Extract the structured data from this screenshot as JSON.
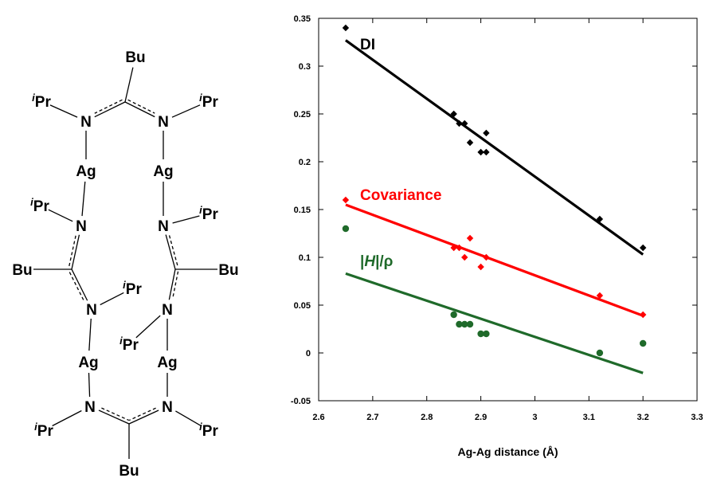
{
  "molecule": {
    "atoms": [
      {
        "id": "Bu_top",
        "label": "Bu"
      },
      {
        "id": "C_top",
        "label": ""
      },
      {
        "id": "N1",
        "label": "N"
      },
      {
        "id": "N2",
        "label": "N"
      },
      {
        "id": "iPr1",
        "sup": "i",
        "label": "Pr"
      },
      {
        "id": "iPr2",
        "sup": "i",
        "label": "Pr"
      },
      {
        "id": "Ag1",
        "label": "Ag"
      },
      {
        "id": "Ag2",
        "label": "Ag"
      },
      {
        "id": "N3",
        "label": "N"
      },
      {
        "id": "iPr3",
        "sup": "i",
        "label": "Pr"
      },
      {
        "id": "N4",
        "label": "N"
      },
      {
        "id": "iPr4",
        "sup": "i",
        "label": "Pr"
      },
      {
        "id": "C_left",
        "label": ""
      },
      {
        "id": "Bu_left",
        "label": "Bu"
      },
      {
        "id": "C_right",
        "label": ""
      },
      {
        "id": "Bu_right",
        "label": "Bu"
      },
      {
        "id": "N5",
        "label": "N"
      },
      {
        "id": "iPr5",
        "sup": "i",
        "label": "Pr"
      },
      {
        "id": "N6",
        "label": "N"
      },
      {
        "id": "iPr6",
        "sup": "i",
        "label": "Pr"
      },
      {
        "id": "Ag3",
        "label": "Ag"
      },
      {
        "id": "Ag4",
        "label": "Ag"
      },
      {
        "id": "N7",
        "label": "N"
      },
      {
        "id": "N8",
        "label": "N"
      },
      {
        "id": "iPr7",
        "sup": "i",
        "label": "Pr"
      },
      {
        "id": "iPr8",
        "sup": "i",
        "label": "Pr"
      },
      {
        "id": "C_bot",
        "label": ""
      },
      {
        "id": "Bu_bot",
        "label": "Bu"
      }
    ],
    "bonds": [
      {
        "a": "C_top",
        "b": "Bu_top",
        "type": "single"
      },
      {
        "a": "C_top",
        "b": "N1",
        "type": "delocalized",
        "side": 1
      },
      {
        "a": "C_top",
        "b": "N2",
        "type": "delocalized",
        "side": -1
      },
      {
        "a": "N1",
        "b": "iPr1",
        "type": "single"
      },
      {
        "a": "N2",
        "b": "iPr2",
        "type": "single"
      },
      {
        "a": "N1",
        "b": "Ag1",
        "type": "single"
      },
      {
        "a": "N2",
        "b": "Ag2",
        "type": "single"
      },
      {
        "a": "Ag1",
        "b": "N3",
        "type": "single"
      },
      {
        "a": "Ag2",
        "b": "N4",
        "type": "single"
      },
      {
        "a": "N3",
        "b": "iPr3",
        "type": "single"
      },
      {
        "a": "N4",
        "b": "iPr4",
        "type": "single"
      },
      {
        "a": "N3",
        "b": "C_left",
        "type": "delocalized",
        "side": 1
      },
      {
        "a": "C_left",
        "b": "Bu_left",
        "type": "single"
      },
      {
        "a": "C_left",
        "b": "N5",
        "type": "delocalized",
        "side": 1
      },
      {
        "a": "N4",
        "b": "C_right",
        "type": "delocalized",
        "side": -1
      },
      {
        "a": "C_right",
        "b": "Bu_right",
        "type": "single"
      },
      {
        "a": "C_right",
        "b": "N6",
        "type": "delocalized",
        "side": -1
      },
      {
        "a": "N5",
        "b": "iPr5",
        "type": "single"
      },
      {
        "a": "N6",
        "b": "iPr6",
        "type": "single"
      },
      {
        "a": "N5",
        "b": "Ag3",
        "type": "single"
      },
      {
        "a": "N6",
        "b": "Ag4",
        "type": "single"
      },
      {
        "a": "Ag3",
        "b": "N7",
        "type": "single"
      },
      {
        "a": "Ag4",
        "b": "N8",
        "type": "single"
      },
      {
        "a": "N7",
        "b": "iPr7",
        "type": "single"
      },
      {
        "a": "N8",
        "b": "iPr8",
        "type": "single"
      },
      {
        "a": "N7",
        "b": "C_bot",
        "type": "delocalized",
        "side": -1
      },
      {
        "a": "N8",
        "b": "C_bot",
        "type": "delocalized",
        "side": 1
      },
      {
        "a": "C_bot",
        "b": "Bu_bot",
        "type": "single"
      }
    ]
  },
  "chart_data": {
    "type": "scatter",
    "xlabel": "Ag-Ag distance (Å)",
    "xlim": [
      2.6,
      3.3
    ],
    "ylim": [
      -0.05,
      0.35
    ],
    "x_ticks": [
      2.6,
      2.7,
      2.8,
      2.9,
      3,
      3.1,
      3.2,
      3.3
    ],
    "x_tick_labels": [
      "2.6",
      "2.7",
      "2.8",
      "2.9",
      "3",
      "3.1",
      "3.2",
      "3.3"
    ],
    "y_ticks": [
      -0.05,
      0,
      0.05,
      0.1,
      0.15,
      0.2,
      0.25,
      0.3,
      0.35
    ],
    "y_tick_labels": [
      "-0.05",
      "0",
      "0.05",
      "0.1",
      "0.15",
      "0.2",
      "0.25",
      "0.3",
      "0.35"
    ],
    "grid": false,
    "series": [
      {
        "name": "DI",
        "color": "#000000",
        "marker": "diamond",
        "points": [
          [
            2.65,
            0.34
          ],
          [
            2.85,
            0.25
          ],
          [
            2.86,
            0.24
          ],
          [
            2.87,
            0.24
          ],
          [
            2.88,
            0.22
          ],
          [
            2.9,
            0.21
          ],
          [
            2.91,
            0.21
          ],
          [
            2.91,
            0.23
          ],
          [
            3.12,
            0.14
          ],
          [
            3.2,
            0.11
          ]
        ],
        "fit": [
          [
            2.65,
            0.327
          ],
          [
            3.2,
            0.103
          ]
        ]
      },
      {
        "name": "Covariance",
        "color": "#ff0000",
        "marker": "diamond",
        "points": [
          [
            2.65,
            0.16
          ],
          [
            2.85,
            0.11
          ],
          [
            2.86,
            0.11
          ],
          [
            2.87,
            0.1
          ],
          [
            2.88,
            0.12
          ],
          [
            2.9,
            0.09
          ],
          [
            2.91,
            0.1
          ],
          [
            3.12,
            0.06
          ],
          [
            3.2,
            0.04
          ]
        ],
        "fit": [
          [
            2.65,
            0.155
          ],
          [
            3.2,
            0.039
          ]
        ]
      },
      {
        "name": "|H|/ρ",
        "label_parts": [
          "|",
          "H",
          "|/ρ"
        ],
        "color": "#1f6a2a",
        "marker": "circle",
        "points": [
          [
            2.65,
            0.13
          ],
          [
            2.85,
            0.04
          ],
          [
            2.86,
            0.03
          ],
          [
            2.87,
            0.03
          ],
          [
            2.88,
            0.03
          ],
          [
            2.9,
            0.02
          ],
          [
            2.91,
            0.02
          ],
          [
            3.12,
            0.0
          ],
          [
            3.2,
            0.01
          ]
        ],
        "fit": [
          [
            2.65,
            0.083
          ],
          [
            3.2,
            -0.021
          ]
        ]
      }
    ]
  }
}
